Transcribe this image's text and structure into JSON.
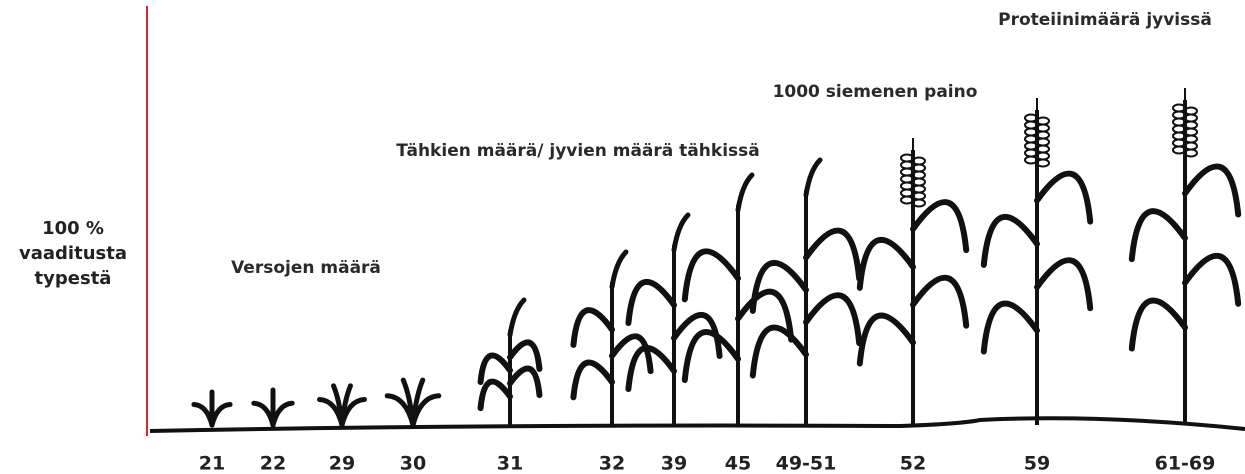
{
  "axis_label": [
    "100 %",
    "vaaditusta",
    "typestä"
  ],
  "annotations": [
    "Proteiinimäärä jyvissä",
    "1000 siemenen paino",
    "Tähkien määrä/ jyvien määrä tähkissä",
    "Versojen määrä"
  ],
  "stages": [
    "21",
    "22",
    "29",
    "30",
    "31",
    "32",
    "39",
    "45",
    "49-51",
    "52",
    "59",
    "61-69"
  ]
}
